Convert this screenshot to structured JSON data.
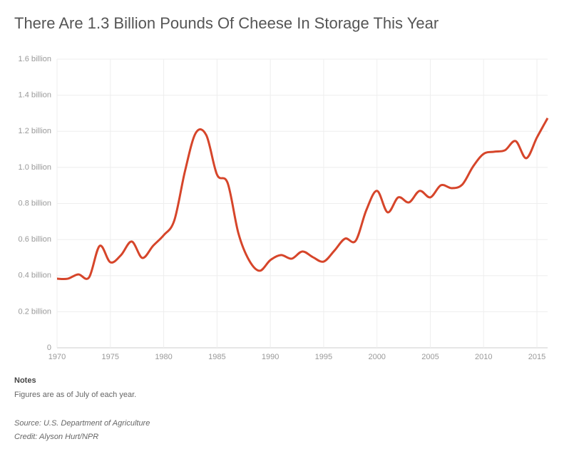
{
  "chart_data": {
    "type": "line",
    "title": "There Are 1.3 Billion Pounds Of Cheese In Storage This Year",
    "x": [
      1970,
      1971,
      1972,
      1973,
      1974,
      1975,
      1976,
      1977,
      1978,
      1979,
      1980,
      1981,
      1982,
      1983,
      1984,
      1985,
      1986,
      1987,
      1988,
      1989,
      1990,
      1991,
      1992,
      1993,
      1994,
      1995,
      1996,
      1997,
      1998,
      1999,
      2000,
      2001,
      2002,
      2003,
      2004,
      2005,
      2006,
      2007,
      2008,
      2009,
      2010,
      2011,
      2012,
      2013,
      2014,
      2015,
      2016
    ],
    "series": [
      {
        "color": "#d6452a",
        "values": [
          0.383,
          0.383,
          0.407,
          0.39,
          0.565,
          0.474,
          0.514,
          0.589,
          0.498,
          0.565,
          0.624,
          0.707,
          0.98,
          1.19,
          1.178,
          0.96,
          0.913,
          0.636,
          0.486,
          0.427,
          0.486,
          0.514,
          0.494,
          0.534,
          0.502,
          0.478,
          0.538,
          0.605,
          0.593,
          0.763,
          0.87,
          0.751,
          0.834,
          0.806,
          0.87,
          0.834,
          0.901,
          0.885,
          0.905,
          1.004,
          1.075,
          1.087,
          1.095,
          1.146,
          1.051,
          1.166,
          1.273
        ]
      }
    ],
    "xlim": [
      1970,
      2016
    ],
    "xticks": [
      1970,
      1975,
      1980,
      1985,
      1990,
      1995,
      2000,
      2005,
      2010,
      2015
    ],
    "ylim": [
      0,
      1.6
    ],
    "yticks": [
      0,
      {
        "value": 0.2,
        "label": "0.2 billion"
      },
      {
        "value": 0.4,
        "label": "0.4 billion"
      },
      {
        "value": 0.6,
        "label": "0.6 billion"
      },
      {
        "value": 0.8,
        "label": "0.8 billion"
      },
      {
        "value": 1.0,
        "label": "1.0 billion"
      },
      {
        "value": 1.2,
        "label": "1.2 billion"
      },
      {
        "value": 1.4,
        "label": "1.4 billion"
      },
      {
        "value": 1.6,
        "label": "1.6 billion"
      }
    ],
    "grid": true
  },
  "notes": {
    "heading": "Notes",
    "text": "Figures are as of July of each year.",
    "source": "Source: U.S. Department of Agriculture",
    "credit": "Credit: Alyson Hurt/NPR"
  }
}
